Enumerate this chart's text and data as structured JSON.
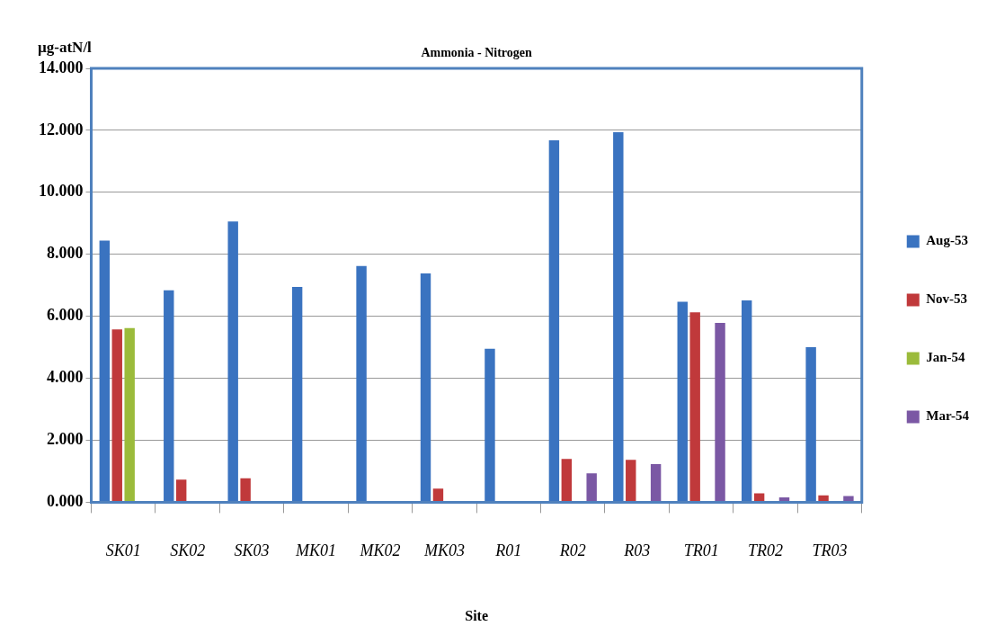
{
  "chart_data": {
    "type": "bar",
    "title": "Ammonia - Nitrogen",
    "xlabel": "Site",
    "ylabel": "µg-atN/l",
    "categories": [
      "SK01",
      "SK02",
      "SK03",
      "MK01",
      "MK02",
      "MK03",
      "R01",
      "R02",
      "R03",
      "TR01",
      "TR02",
      "TR03"
    ],
    "series": [
      {
        "name": "Aug-53",
        "color": "#3a73c0",
        "values": [
          8.44,
          6.84,
          9.06,
          6.95,
          7.62,
          7.38,
          4.95,
          11.68,
          11.94,
          6.47,
          6.51,
          5.0
        ]
      },
      {
        "name": "Nov-53",
        "color": "#c0393b",
        "values": [
          5.58,
          0.73,
          0.77,
          null,
          null,
          0.44,
          null,
          1.4,
          1.37,
          6.13,
          0.29,
          0.22
        ]
      },
      {
        "name": "Jan-54",
        "color": "#9bbb3b",
        "values": [
          5.62,
          null,
          null,
          null,
          null,
          null,
          null,
          null,
          null,
          null,
          null,
          null
        ]
      },
      {
        "name": "Mar-54",
        "color": "#7b58a4",
        "values": [
          null,
          null,
          null,
          null,
          null,
          0.02,
          0.03,
          0.93,
          1.23,
          5.79,
          0.16,
          0.2
        ]
      }
    ],
    "ylim": [
      0,
      14
    ],
    "yticks": [
      {
        "value": 0,
        "label": "0.000"
      },
      {
        "value": 2,
        "label": "2.000"
      },
      {
        "value": 4,
        "label": "4.000"
      },
      {
        "value": 6,
        "label": "6.000"
      },
      {
        "value": 8,
        "label": "8.000"
      },
      {
        "value": 10,
        "label": "10.000"
      },
      {
        "value": 12,
        "label": "12.000"
      },
      {
        "value": 14,
        "label": "14.000"
      }
    ],
    "grid": "y",
    "legend": "right"
  }
}
